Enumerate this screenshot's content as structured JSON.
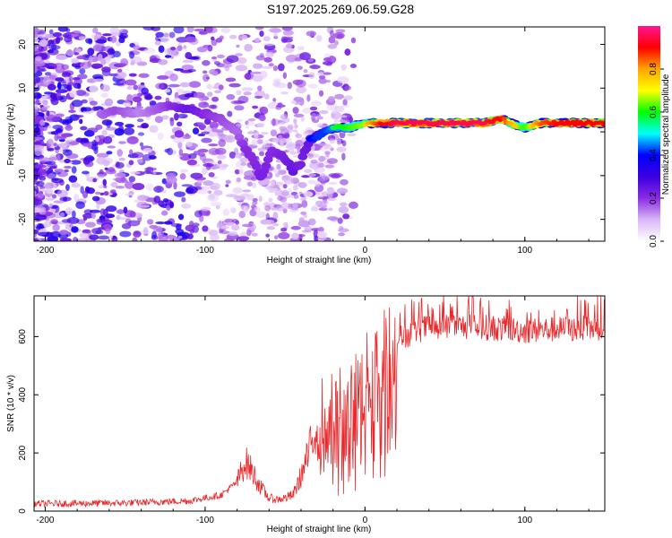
{
  "title": "S197.2025.269.06.59.G28",
  "chart_data": [
    {
      "type": "heatmap",
      "name": "spectrogram",
      "xlabel": "Height of straight line (km)",
      "ylabel": "Frequency (Hz)",
      "xlim": [
        -207,
        150
      ],
      "ylim": [
        -25,
        24
      ],
      "xticks": [
        -200,
        -100,
        0,
        100
      ],
      "yticks": [
        -20,
        -10,
        0,
        10,
        20
      ],
      "colorbar": {
        "label": "Normalized spectral amplitude",
        "range": [
          0,
          1
        ],
        "ticks": [
          "0.0",
          "0.2",
          "0.4",
          "0.6",
          "0.8"
        ],
        "colors": [
          "#ffffff",
          "#d9b6f6",
          "#8a2be2",
          "#3a00e0",
          "#0000ff",
          "#00ffff",
          "#00ff00",
          "#ffff00",
          "#ffa500",
          "#ff0000",
          "#ff1493"
        ]
      },
      "ridge": {
        "x": [
          -165,
          -155,
          -140,
          -125,
          -110,
          -100,
          -90,
          -80,
          -75,
          -70,
          -65,
          -58,
          -50,
          -45,
          -40,
          -35,
          -30,
          -25,
          -20,
          -10,
          0,
          10,
          20,
          40,
          60,
          75,
          85,
          90,
          100,
          110,
          120,
          150
        ],
        "y": [
          4,
          5,
          4,
          6,
          5,
          4,
          3,
          0,
          -4,
          -6,
          -11,
          -4,
          -6,
          -9,
          -7,
          -2,
          -1,
          0,
          1,
          1,
          2,
          2,
          2,
          2,
          2,
          2,
          3,
          2,
          1,
          2,
          2,
          2
        ],
        "intensity": [
          0.35,
          0.4,
          0.3,
          0.4,
          0.55,
          0.45,
          0.4,
          0.35,
          0.45,
          0.45,
          0.5,
          0.45,
          0.5,
          0.55,
          0.5,
          0.55,
          0.6,
          0.6,
          0.65,
          0.7,
          0.75,
          0.9,
          0.95,
          0.95,
          0.95,
          0.95,
          0.9,
          0.8,
          0.7,
          0.85,
          0.9,
          0.9
        ]
      }
    },
    {
      "type": "line",
      "name": "snr",
      "xlabel": "Height of straight line (km)",
      "ylabel": "SNR (10 * v/v)",
      "xlim": [
        -207,
        150
      ],
      "ylim": [
        0,
        740
      ],
      "xticks": [
        -200,
        -100,
        0,
        100
      ],
      "yticks": [
        0,
        200,
        400,
        600
      ],
      "color": "#e8282b",
      "envelope": {
        "x": [
          -207,
          -150,
          -110,
          -90,
          -80,
          -75,
          -72,
          -68,
          -65,
          -60,
          -55,
          -50,
          -45,
          -40,
          -35,
          -30,
          -25,
          -20,
          -15,
          -10,
          -5,
          0,
          5,
          10,
          15,
          20,
          30,
          40,
          60,
          80,
          100,
          120,
          150
        ],
        "y": [
          25,
          28,
          35,
          55,
          100,
          170,
          150,
          110,
          80,
          45,
          40,
          45,
          55,
          120,
          200,
          320,
          300,
          330,
          360,
          330,
          400,
          450,
          480,
          540,
          560,
          590,
          615,
          635,
          635,
          630,
          620,
          625,
          630
        ]
      }
    }
  ]
}
